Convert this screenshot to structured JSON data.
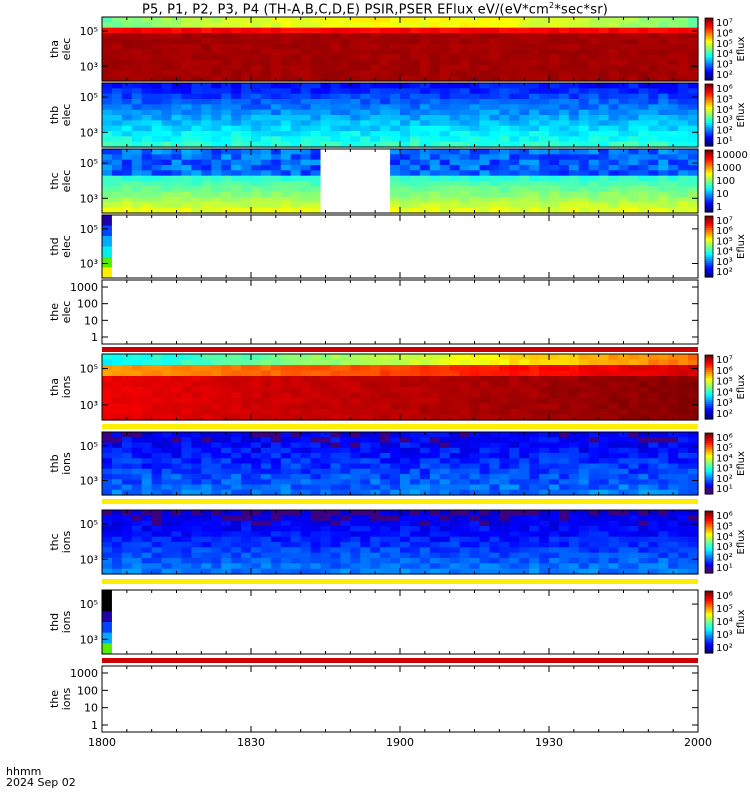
{
  "header": {
    "title_pre": "P5, P1, P2, P3, P4 (TH-A,B,C,D,E) PSIR,PSER EFlux eV/(eV*cm",
    "title_sup": "2",
    "title_post": "*sec*sr)"
  },
  "footer": {
    "line1": "hhmm",
    "line2": "2024 Sep 02"
  },
  "x_axis": {
    "type": "time",
    "range": [
      "18:00",
      "20:00"
    ],
    "tick_labels": [
      "1800",
      "1830",
      "1900",
      "1930",
      "2000"
    ],
    "tick_values_min": [
      0,
      30,
      60,
      90,
      120
    ]
  },
  "colorbar_label": "Eflux",
  "colors": {
    "red": "#cc0000",
    "darkred": "#b00000",
    "yellow": "#ffee00",
    "green": "#55ee00",
    "cyan": "#00eeee",
    "blue": "#0044ff",
    "navy": "#2000aa",
    "purple": "#3a0090",
    "white": "#ffffff",
    "black": "#000000"
  },
  "chart_data": [
    {
      "type": "heatmap",
      "ylabel": [
        "tha",
        "elec"
      ],
      "y_ticks": [
        "10⁵",
        "10³"
      ],
      "log": true,
      "colorbar": [
        "10⁷",
        "10⁶",
        "10⁵",
        "10⁴",
        "10³",
        "10²"
      ],
      "colorbar_title": "Eflux"
    },
    {
      "type": "heatmap",
      "ylabel": [
        "thb",
        "elec"
      ],
      "y_ticks": [
        "10⁵",
        "10³"
      ],
      "log": true,
      "colorbar": [
        "10⁶",
        "10⁵",
        "10⁴",
        "10³",
        "10²",
        "10¹"
      ],
      "colorbar_title": "Eflux"
    },
    {
      "type": "heatmap",
      "ylabel": [
        "thc",
        "elec"
      ],
      "y_ticks": [
        "10⁵",
        "10³"
      ],
      "log": true,
      "colorbar": [
        "10000",
        "1000",
        "100",
        "10",
        "1"
      ],
      "colorbar_title": "",
      "gap_minutes": [
        44,
        58
      ]
    },
    {
      "type": "heatmap",
      "ylabel": [
        "thd",
        "elec"
      ],
      "y_ticks": [
        "10⁵",
        "10³"
      ],
      "log": true,
      "colorbar": [
        "10⁷",
        "10⁶",
        "10⁵",
        "10⁴",
        "10³",
        "10²"
      ],
      "colorbar_title": "Eflux",
      "data_minutes": [
        0,
        2
      ]
    },
    {
      "type": "heatmap",
      "ylabel": [
        "the",
        "elec"
      ],
      "y_ticks": [
        "1000",
        "100",
        "10",
        "1"
      ],
      "log": true,
      "colorbar": [],
      "colorbar_title": ""
    },
    {
      "type": "heatmap",
      "ylabel": [
        "tha",
        "ions"
      ],
      "y_ticks": [
        "10⁵",
        "10³"
      ],
      "log": true,
      "colorbar": [
        "10⁷",
        "10⁶",
        "10⁵",
        "10⁴",
        "10³",
        "10²"
      ],
      "colorbar_title": "Eflux"
    },
    {
      "type": "heatmap",
      "ylabel": [
        "thb",
        "ions"
      ],
      "y_ticks": [
        "10⁵",
        "10³"
      ],
      "log": true,
      "colorbar": [
        "10⁶",
        "10⁵",
        "10⁴",
        "10³",
        "10²",
        "10¹"
      ],
      "colorbar_title": "Eflux"
    },
    {
      "type": "heatmap",
      "ylabel": [
        "thc",
        "ions"
      ],
      "y_ticks": [
        "10⁵",
        "10³"
      ],
      "log": true,
      "colorbar": [
        "10⁶",
        "10⁵",
        "10⁴",
        "10³",
        "10²",
        "10¹"
      ],
      "colorbar_title": "Eflux"
    },
    {
      "type": "heatmap",
      "ylabel": [
        "thd",
        "ions"
      ],
      "y_ticks": [
        "10⁵",
        "10³"
      ],
      "log": true,
      "colorbar": [
        "10⁶",
        "10⁵",
        "10⁴",
        "10³",
        "10²"
      ],
      "colorbar_title": "Eflux",
      "data_minutes": [
        0,
        2
      ]
    },
    {
      "type": "heatmap",
      "ylabel": [
        "the",
        "ions"
      ],
      "y_ticks": [
        "1000",
        "100",
        "10",
        "1"
      ],
      "log": true,
      "colorbar": [],
      "colorbar_title": ""
    }
  ]
}
